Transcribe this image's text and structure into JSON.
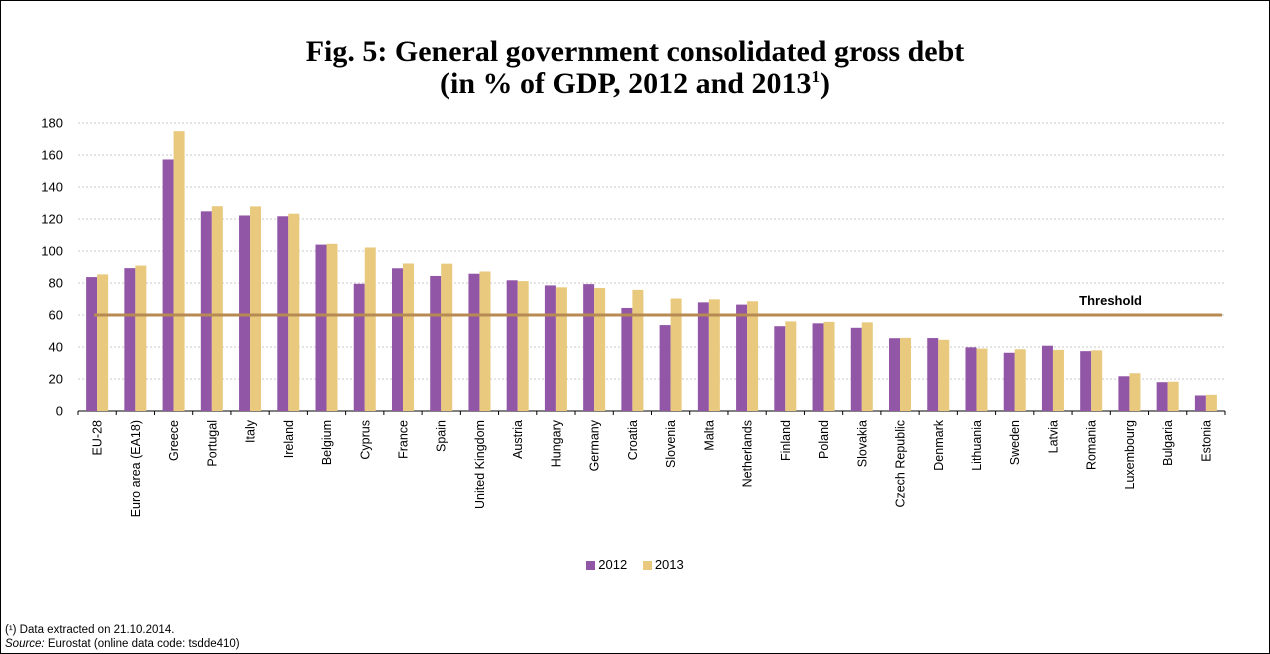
{
  "title_line1": "Fig. 5: General government consolidated gross debt",
  "title_line2": "(in % of GDP, 2012 and 2013",
  "title_sup": "1",
  "title_close": ")",
  "footnote": "(¹) Data extracted on 21.10.2014.",
  "source_label": "Source:",
  "source_text": " Eurostat (online data code: tsdde410)",
  "chart_data": {
    "type": "bar",
    "title": "Fig. 5: General government consolidated gross debt (in % of GDP, 2012 and 2013¹)",
    "ylim": [
      0,
      180
    ],
    "yticks": [
      0,
      20,
      40,
      60,
      80,
      100,
      120,
      140,
      160,
      180
    ],
    "grid": true,
    "legend_position": "bottom",
    "categories": [
      "EU-28",
      "Euro area (EA18)",
      "Greece",
      "Portugal",
      "Italy",
      "Ireland",
      "Belgium",
      "Cyprus",
      "France",
      "Spain",
      "United Kingdom",
      "Austria",
      "Hungary",
      "Germany",
      "Croatia",
      "Slovenia",
      "Malta",
      "Netherlands",
      "Finland",
      "Poland",
      "Slovakia",
      "Czech Republic",
      "Denmark",
      "Lithuania",
      "Sweden",
      "Latvia",
      "Romania",
      "Luxembourg",
      "Bulgaria",
      "Estonia"
    ],
    "series": [
      {
        "name": "2012",
        "color": "#9256a6",
        "values": [
          83.7,
          89.3,
          157.2,
          124.8,
          122.2,
          121.7,
          104.0,
          79.5,
          89.2,
          84.4,
          85.8,
          81.7,
          78.5,
          79.3,
          64.4,
          53.7,
          67.9,
          66.5,
          53.0,
          54.8,
          52.0,
          45.5,
          45.6,
          39.8,
          36.4,
          40.8,
          37.4,
          21.7,
          18.0,
          9.7
        ]
      },
      {
        "name": "2013",
        "color": "#e8c97e",
        "values": [
          85.4,
          90.9,
          174.9,
          128.0,
          127.9,
          123.3,
          104.5,
          102.2,
          92.2,
          92.1,
          87.2,
          81.2,
          77.3,
          76.9,
          75.7,
          70.3,
          69.8,
          68.6,
          56.0,
          55.7,
          55.4,
          45.7,
          44.5,
          39.0,
          38.6,
          38.2,
          37.9,
          23.6,
          18.3,
          10.1
        ]
      }
    ],
    "threshold": {
      "label": "Threshold",
      "value": 60,
      "color": "#b88a53"
    }
  }
}
